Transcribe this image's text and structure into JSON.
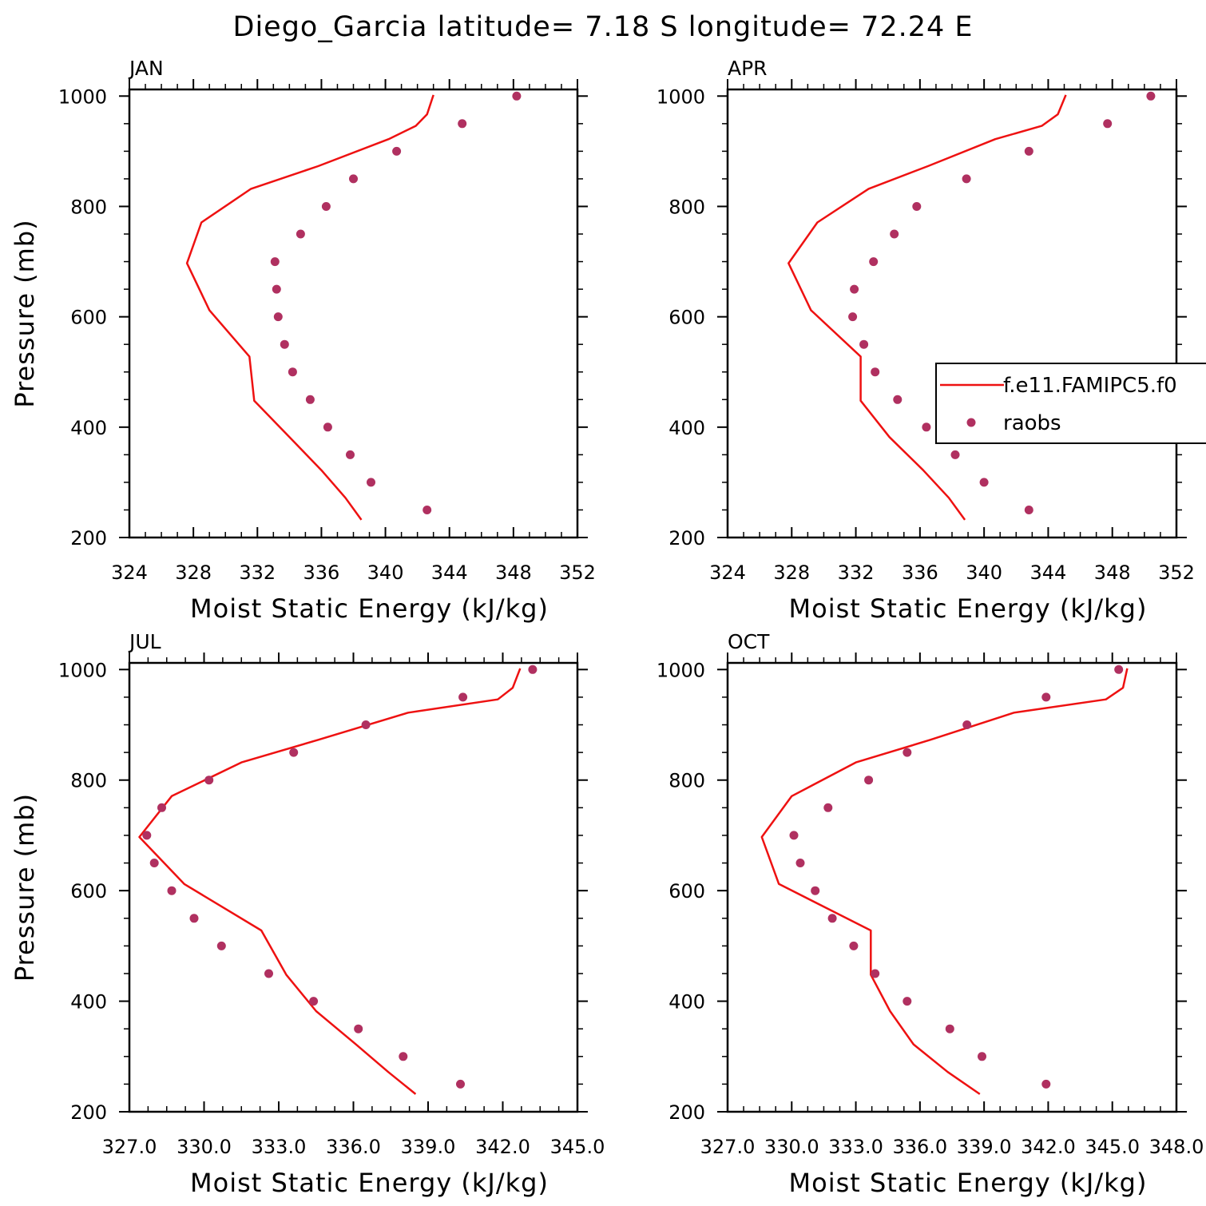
{
  "title": "Diego_Garcia  latitude= 7.18 S longitude= 72.24 E",
  "colors": {
    "model": "#ee1111",
    "obs": "#b03060",
    "axes": "#000000"
  },
  "legend": {
    "placement": "right side of APR panel",
    "entries": [
      {
        "label": "f.e11.FAMIPC5.f0",
        "style": "line",
        "color": "#ee1111"
      },
      {
        "label": "raobs",
        "style": "marker",
        "color": "#b03060"
      }
    ]
  },
  "chart_data": [
    {
      "type": "line",
      "panel": "JAN",
      "xlabel": "Moist Static Energy (kJ/kg)",
      "ylabel": "Pressure (mb)",
      "xlim": [
        324,
        352
      ],
      "xticks": [
        324,
        328,
        332,
        336,
        340,
        344,
        348,
        352
      ],
      "xtick_labels": [
        "324",
        "328",
        "332",
        "336",
        "340",
        "344",
        "348",
        "352"
      ],
      "ylim": [
        1012,
        200
      ],
      "yticks": [
        200,
        400,
        600,
        800,
        1000
      ],
      "ytick_labels": [
        "200",
        "400",
        "600",
        "800",
        "1000"
      ],
      "series": [
        {
          "style": "line",
          "color": "#ee1111",
          "x": [
            338.5,
            337.5,
            336,
            334,
            331.8,
            331.5,
            329,
            327.6,
            328.5,
            331.6,
            335.8,
            340.2,
            341.9,
            342.6,
            343
          ],
          "y": [
            232,
            272,
            322,
            382,
            448,
            528,
            612,
            697,
            771,
            832,
            873,
            922,
            946,
            967,
            1002
          ]
        },
        {
          "style": "marker",
          "color": "#b03060",
          "x": [
            342.6,
            339.1,
            337.8,
            336.4,
            335.3,
            334.2,
            333.7,
            333.3,
            333.2,
            333.1,
            334.7,
            336.3,
            338,
            340.7,
            344.8,
            348.2
          ],
          "y": [
            250,
            300,
            350,
            400,
            450,
            500,
            550,
            600,
            650,
            700,
            750,
            800,
            850,
            900,
            950,
            1000
          ]
        }
      ]
    },
    {
      "type": "line",
      "panel": "APR",
      "xlabel": "Moist Static Energy (kJ/kg)",
      "ylabel": "",
      "xlim": [
        324,
        352
      ],
      "xticks": [
        324,
        328,
        332,
        336,
        340,
        344,
        348,
        352
      ],
      "xtick_labels": [
        "324",
        "328",
        "332",
        "336",
        "340",
        "344",
        "348",
        "352"
      ],
      "ylim": [
        1012,
        200
      ],
      "yticks": [
        200,
        400,
        600,
        800,
        1000
      ],
      "ytick_labels": [
        "200",
        "400",
        "600",
        "800",
        "1000"
      ],
      "series": [
        {
          "style": "line",
          "color": "#ee1111",
          "x": [
            338.8,
            337.8,
            336.2,
            334.1,
            332.3,
            332.3,
            329.2,
            327.8,
            329.6,
            332.8,
            336.5,
            340.7,
            343.6,
            344.6,
            345.1
          ],
          "y": [
            232,
            272,
            322,
            382,
            448,
            528,
            612,
            697,
            771,
            832,
            873,
            922,
            946,
            967,
            1002
          ]
        },
        {
          "style": "marker",
          "color": "#b03060",
          "x": [
            342.8,
            340,
            338.2,
            336.4,
            334.6,
            333.2,
            332.5,
            331.8,
            331.9,
            333.1,
            334.4,
            335.8,
            338.9,
            342.8,
            347.7,
            350.4
          ],
          "y": [
            250,
            300,
            350,
            400,
            450,
            500,
            550,
            600,
            650,
            700,
            750,
            800,
            850,
            900,
            950,
            1000
          ]
        }
      ]
    },
    {
      "type": "line",
      "panel": "JUL",
      "xlabel": "Moist Static Energy (kJ/kg)",
      "ylabel": "Pressure (mb)",
      "xlim": [
        327,
        345
      ],
      "xticks": [
        327,
        330,
        333,
        336,
        339,
        342,
        345
      ],
      "xtick_labels": [
        "327.0",
        "330.0",
        "333.0",
        "336.0",
        "339.0",
        "342.0",
        "345.0"
      ],
      "ylim": [
        1012,
        200
      ],
      "yticks": [
        200,
        400,
        600,
        800,
        1000
      ],
      "ytick_labels": [
        "200",
        "400",
        "600",
        "800",
        "1000"
      ],
      "series": [
        {
          "style": "line",
          "color": "#ee1111",
          "x": [
            338.5,
            337.4,
            336.1,
            334.5,
            333.3,
            332.3,
            329.2,
            327.4,
            328.7,
            331.5,
            334.6,
            338.2,
            341.8,
            342.4,
            342.7
          ],
          "y": [
            232,
            272,
            322,
            382,
            448,
            528,
            612,
            697,
            771,
            832,
            873,
            922,
            946,
            967,
            1002
          ]
        },
        {
          "style": "marker",
          "color": "#b03060",
          "x": [
            340.3,
            338,
            336.2,
            334.4,
            332.6,
            330.7,
            329.6,
            328.7,
            328,
            327.7,
            328.3,
            330.2,
            333.6,
            336.5,
            340.4,
            343.2
          ],
          "y": [
            250,
            300,
            350,
            400,
            450,
            500,
            550,
            600,
            650,
            700,
            750,
            800,
            850,
            900,
            950,
            1000
          ]
        }
      ]
    },
    {
      "type": "line",
      "panel": "OCT",
      "xlabel": "Moist Static Energy (kJ/kg)",
      "ylabel": "",
      "xlim": [
        327,
        348
      ],
      "xticks": [
        327,
        330,
        333,
        336,
        339,
        342,
        345,
        348
      ],
      "xtick_labels": [
        "327.0",
        "330.0",
        "333.0",
        "336.0",
        "339.0",
        "342.0",
        "345.0",
        "348.0"
      ],
      "ylim": [
        1012,
        200
      ],
      "yticks": [
        200,
        400,
        600,
        800,
        1000
      ],
      "ytick_labels": [
        "200",
        "400",
        "600",
        "800",
        "1000"
      ],
      "series": [
        {
          "style": "line",
          "color": "#ee1111",
          "x": [
            338.8,
            337.3,
            335.7,
            334.6,
            333.7,
            333.7,
            329.4,
            328.6,
            330,
            333,
            336.5,
            340.4,
            344.7,
            345.5,
            345.7
          ],
          "y": [
            232,
            272,
            322,
            382,
            448,
            528,
            612,
            697,
            771,
            832,
            873,
            922,
            946,
            967,
            1002
          ]
        },
        {
          "style": "marker",
          "color": "#b03060",
          "x": [
            341.9,
            338.9,
            337.4,
            335.4,
            333.9,
            332.9,
            331.9,
            331.1,
            330.4,
            330.1,
            331.7,
            333.6,
            335.4,
            338.2,
            341.9,
            345.3
          ],
          "y": [
            250,
            300,
            350,
            400,
            450,
            500,
            550,
            600,
            650,
            700,
            750,
            800,
            850,
            900,
            950,
            1000
          ]
        }
      ]
    }
  ]
}
